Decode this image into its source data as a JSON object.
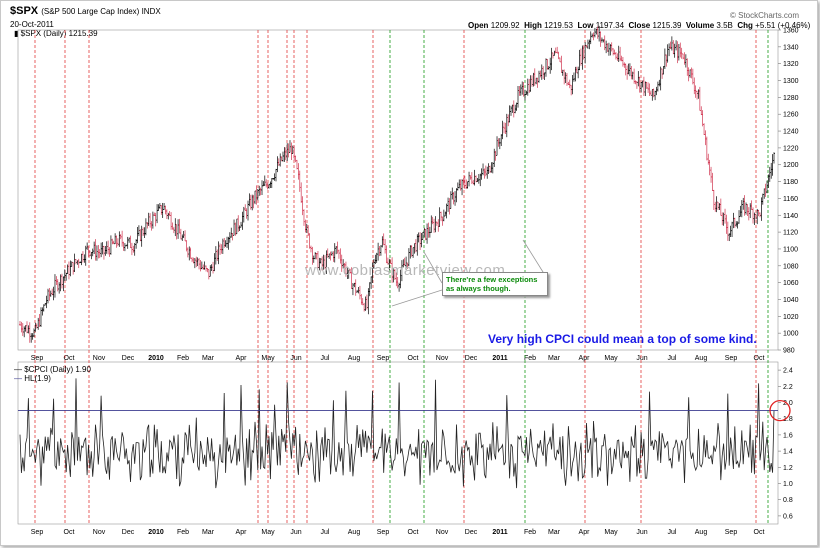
{
  "header": {
    "symbol": "$SPX",
    "symbol_desc": "(S&P 500 Large Cap Index) INDX",
    "date": "20-Oct-2011",
    "open_label": "Open",
    "open": "1209.92",
    "high_label": "High",
    "high": "1219.53",
    "low_label": "Low",
    "low": "1197.34",
    "close_label": "Close",
    "close": "1215.39",
    "volume_label": "Volume",
    "volume": "3.5B",
    "chg_label": "Chg",
    "chg": "+5.51 (+0.46%)",
    "brand": "© StockCharts.com",
    "upper_legend": "$SPX (Daily) 1215.39",
    "lower_legend1": "$CPCI (Daily) 1.90",
    "lower_legend2": "HL(1.9)"
  },
  "annotations": {
    "watermark": "www.cobrasmarketview.com",
    "callout_line1": "There're a few exceptions",
    "callout_line2": "as always though.",
    "main_note": "Very high CPCI could mean a top of some kind."
  },
  "colors": {
    "up": "#000000",
    "down": "#d0334e",
    "red_line": "#e23c3c",
    "green_line": "#1a9a1a",
    "hline": "#3b3b8f",
    "circle": "#e02020",
    "note": "#1a1ae6"
  },
  "chart_data": [
    {
      "type": "candlestick",
      "title": "$SPX (S&P 500 Large Cap Index) INDX",
      "ylim": [
        980,
        1360
      ],
      "yticks": [
        980,
        1000,
        1020,
        1040,
        1060,
        1080,
        1100,
        1120,
        1140,
        1160,
        1180,
        1200,
        1220,
        1240,
        1260,
        1280,
        1300,
        1320,
        1340,
        1360
      ],
      "x_labels": [
        "Sep",
        "Oct",
        "Nov",
        "Dec",
        "2010",
        "Feb",
        "Mar",
        "Apr",
        "May",
        "Jun",
        "Jul",
        "Aug",
        "Sep",
        "Oct",
        "Nov",
        "Dec",
        "2011",
        "Feb",
        "Mar",
        "Apr",
        "May",
        "Jun",
        "Jul",
        "Aug",
        "Sep",
        "Oct"
      ],
      "x_label_pos": [
        37,
        69,
        99,
        128,
        156,
        183,
        208,
        241,
        268,
        296,
        325,
        354,
        383,
        413,
        442,
        471,
        500,
        530,
        554,
        584,
        611,
        642,
        672,
        701,
        731,
        759
      ],
      "path_t": [
        0.0,
        0.02,
        0.035,
        0.05,
        0.07,
        0.09,
        0.11,
        0.13,
        0.15,
        0.17,
        0.19,
        0.21,
        0.23,
        0.25,
        0.27,
        0.29,
        0.31,
        0.33,
        0.35,
        0.36,
        0.37,
        0.38,
        0.39,
        0.4,
        0.42,
        0.44,
        0.46,
        0.47,
        0.48,
        0.49,
        0.5,
        0.52,
        0.54,
        0.56,
        0.58,
        0.6,
        0.62,
        0.64,
        0.65,
        0.66,
        0.67,
        0.68,
        0.69,
        0.7,
        0.71,
        0.72,
        0.73,
        0.74,
        0.75,
        0.76,
        0.78,
        0.8,
        0.82,
        0.84,
        0.86,
        0.88,
        0.9,
        0.92,
        0.94,
        0.96,
        0.98,
        1.0
      ],
      "path_v": [
        1010,
        1000,
        1040,
        1060,
        1080,
        1100,
        1095,
        1110,
        1105,
        1130,
        1150,
        1120,
        1090,
        1070,
        1110,
        1130,
        1160,
        1180,
        1210,
        1220,
        1180,
        1120,
        1090,
        1080,
        1100,
        1060,
        1030,
        1090,
        1110,
        1080,
        1060,
        1100,
        1120,
        1140,
        1170,
        1185,
        1190,
        1240,
        1260,
        1280,
        1290,
        1300,
        1310,
        1320,
        1330,
        1310,
        1290,
        1320,
        1340,
        1360,
        1340,
        1320,
        1300,
        1280,
        1340,
        1330,
        1280,
        1160,
        1120,
        1150,
        1140,
        1210
      ],
      "seed": 7
    },
    {
      "type": "line",
      "title": "$CPCI (Daily) 1.90",
      "ylim": [
        0.5,
        2.5
      ],
      "yticks": [
        0.6,
        0.8,
        1.0,
        1.2,
        1.4,
        1.6,
        1.8,
        2.0,
        2.2,
        2.4
      ],
      "hline": 1.9,
      "spike_days": [
        6,
        24,
        40,
        58,
        146,
        158,
        171,
        182,
        191,
        224,
        233,
        252,
        271,
        297,
        348,
        450,
        478,
        506,
        528
      ],
      "seed": 11
    }
  ],
  "vlines": {
    "red": [
      35,
      65,
      89,
      258,
      268,
      287,
      294,
      307,
      373,
      464,
      585,
      641,
      756
    ],
    "green": [
      390,
      424,
      525,
      768
    ]
  }
}
